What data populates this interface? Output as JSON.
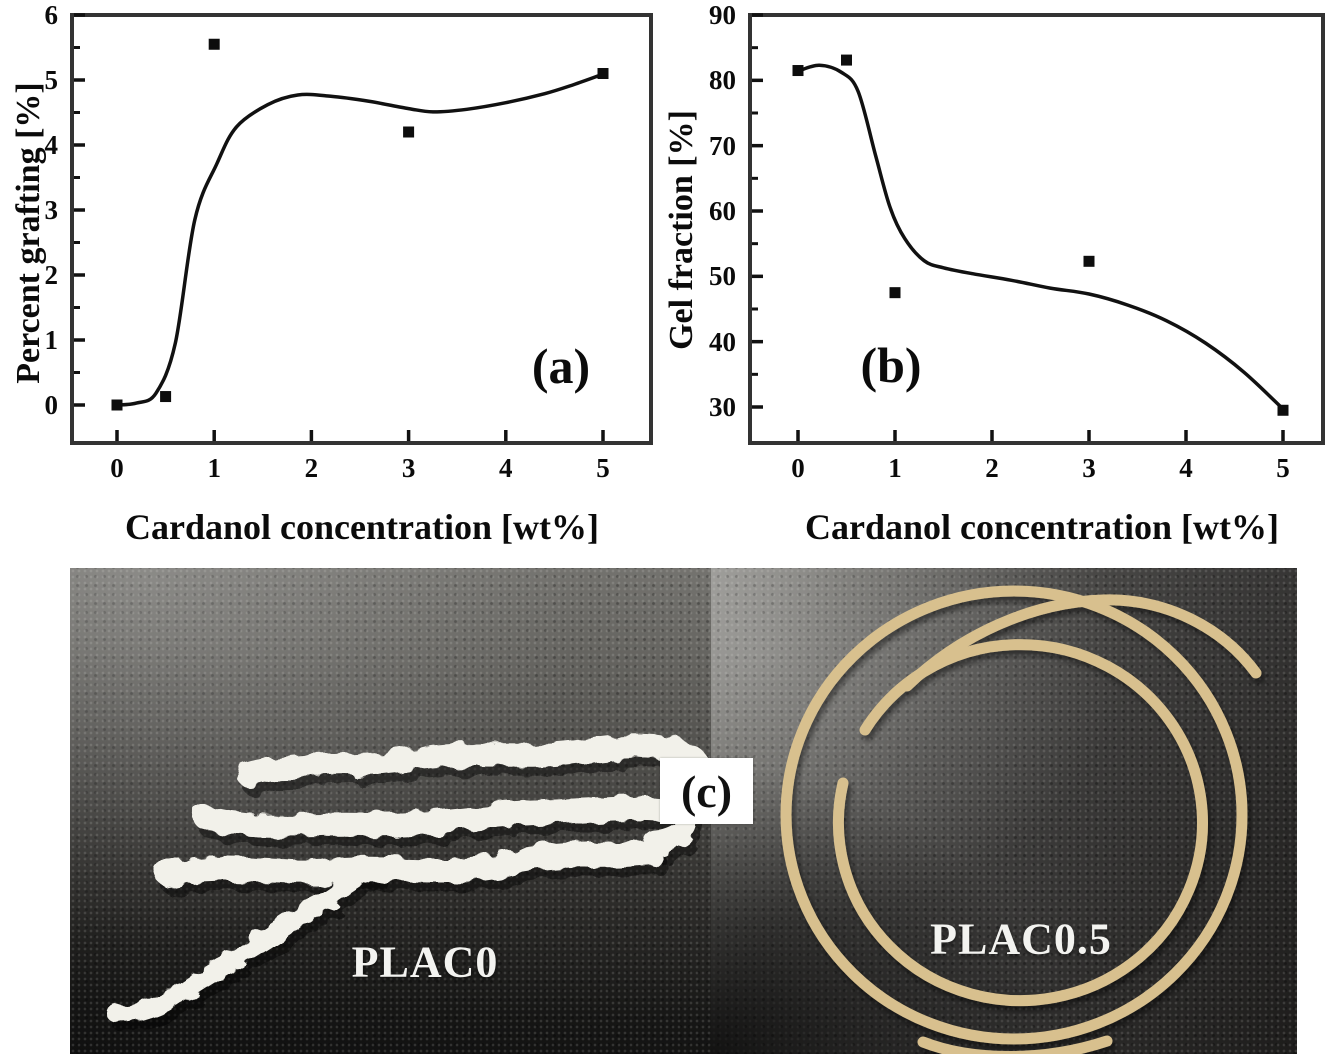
{
  "chart_data": [
    {
      "id": "a",
      "type": "scatter",
      "panel_label": "(a)",
      "xlabel": "Cardanol concentration [wt%]",
      "ylabel": "Percent grafting [%]",
      "xticks": [
        0,
        1,
        2,
        3,
        4,
        5
      ],
      "yticks": [
        0,
        1,
        2,
        3,
        4,
        5,
        6
      ],
      "xlim": [
        -0.46,
        5.49
      ],
      "ylim": [
        -0.58,
        6.0
      ],
      "grid": false,
      "marker": "square",
      "points": [
        [
          0,
          0.0
        ],
        [
          0.5,
          0.13
        ],
        [
          1,
          5.55
        ],
        [
          3,
          4.2
        ],
        [
          5,
          5.1
        ]
      ],
      "curve": [
        [
          0,
          0.0
        ],
        [
          0.2,
          0.03
        ],
        [
          0.4,
          0.18
        ],
        [
          0.6,
          0.95
        ],
        [
          0.8,
          2.85
        ],
        [
          1.03,
          3.72
        ],
        [
          1.23,
          4.28
        ],
        [
          1.55,
          4.62
        ],
        [
          1.86,
          4.77
        ],
        [
          2.2,
          4.75
        ],
        [
          2.6,
          4.67
        ],
        [
          3.0,
          4.56
        ],
        [
          3.25,
          4.51
        ],
        [
          3.6,
          4.55
        ],
        [
          4.0,
          4.65
        ],
        [
          4.4,
          4.79
        ],
        [
          4.7,
          4.93
        ],
        [
          5.0,
          5.09
        ]
      ]
    },
    {
      "id": "b",
      "type": "scatter",
      "panel_label": "(b)",
      "xlabel": "Cardanol concentration [wt%]",
      "ylabel": "Gel fraction [%]",
      "xticks": [
        0,
        1,
        2,
        3,
        4,
        5
      ],
      "yticks": [
        30,
        40,
        50,
        60,
        70,
        80,
        90
      ],
      "xlim": [
        -0.49,
        5.41
      ],
      "ylim": [
        24.5,
        90
      ],
      "grid": false,
      "marker": "square",
      "points": [
        [
          0,
          81.5
        ],
        [
          0.5,
          83.1
        ],
        [
          1,
          47.5
        ],
        [
          3,
          52.3
        ],
        [
          5,
          29.5
        ]
      ],
      "curve": [
        [
          0,
          81.4
        ],
        [
          0.22,
          82.3
        ],
        [
          0.45,
          81.2
        ],
        [
          0.62,
          78.3
        ],
        [
          0.8,
          68.5
        ],
        [
          0.95,
          60.5
        ],
        [
          1.1,
          55.8
        ],
        [
          1.3,
          52.4
        ],
        [
          1.5,
          51.3
        ],
        [
          1.8,
          50.4
        ],
        [
          2.2,
          49.4
        ],
        [
          2.6,
          48.2
        ],
        [
          3.0,
          47.3
        ],
        [
          3.4,
          45.6
        ],
        [
          3.8,
          43.2
        ],
        [
          4.2,
          39.8
        ],
        [
          4.6,
          35.3
        ],
        [
          5.0,
          29.7
        ]
      ]
    }
  ],
  "photo_panel": {
    "panel_label": "(c)",
    "left": {
      "label": "PLAC0",
      "description": "white shredded polymer strands on dark leather background"
    },
    "right": {
      "label": "PLAC0.5",
      "description": "beige polymer filament coil on dark leather background"
    }
  },
  "colors": {
    "chart_ink": "#111111",
    "frame": "#333333",
    "marker": "#0d0d0d",
    "strand_white": "#f2f1ea",
    "filament_tan": "#d8c08e",
    "photo_label": "#f3f3f0",
    "badge_bg": "#ffffff",
    "badge_text": "#101010"
  }
}
